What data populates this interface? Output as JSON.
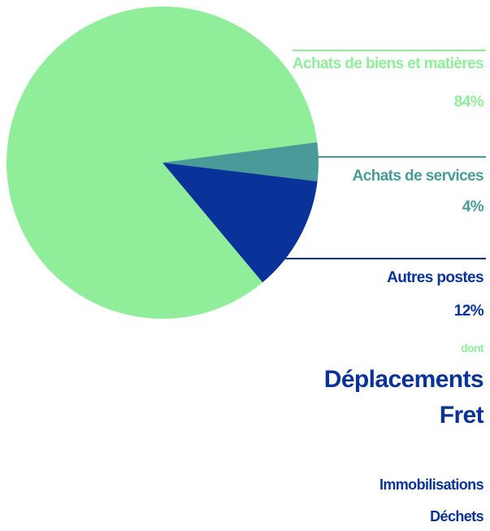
{
  "chart_data": {
    "type": "pie",
    "categories": [
      "Achats de biens et matières",
      "Achats de services",
      "Autres postes"
    ],
    "values": [
      84,
      4,
      12
    ],
    "value_labels": [
      "84%",
      "4%",
      "12%"
    ],
    "colors": [
      "#90ee9a",
      "#4a9a9a",
      "#0a3399"
    ],
    "annotations": [
      "dont",
      "Déplacements",
      "Fret",
      "Immobilisations",
      "Déchets"
    ]
  }
}
